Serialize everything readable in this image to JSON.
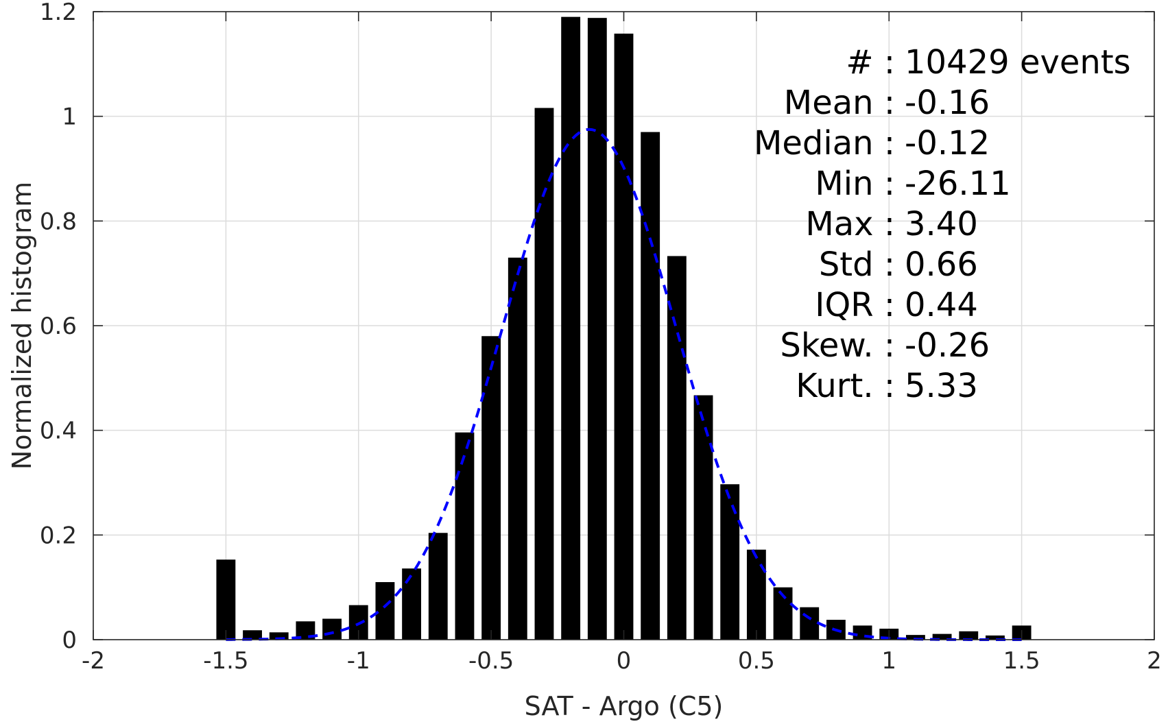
{
  "chart_data": {
    "type": "bar",
    "title": "",
    "xlabel": "SAT - Argo (C5)",
    "ylabel": "Normalized histogram",
    "xlim": [
      -2,
      2
    ],
    "ylim": [
      0,
      1.2
    ],
    "grid": true,
    "xticks": [
      -2,
      -1.5,
      -1,
      -0.5,
      0,
      0.5,
      1,
      1.5,
      2
    ],
    "xtick_labels": [
      "-2",
      "-1.5",
      "-1",
      "-0.5",
      "0",
      "0.5",
      "1",
      "1.5",
      "2"
    ],
    "yticks": [
      0,
      0.2,
      0.4,
      0.6,
      0.8,
      1,
      1.2
    ],
    "ytick_labels": [
      "0",
      "0.2",
      "0.4",
      "0.6",
      "0.8",
      "1",
      "1.2"
    ],
    "bin_width": 0.1,
    "x": [
      -1.5,
      -1.4,
      -1.3,
      -1.2,
      -1.1,
      -1.0,
      -0.9,
      -0.8,
      -0.7,
      -0.6,
      -0.5,
      -0.4,
      -0.3,
      -0.2,
      -0.1,
      0.0,
      0.1,
      0.2,
      0.3,
      0.4,
      0.5,
      0.6,
      0.7,
      0.8,
      0.9,
      1.0,
      1.1,
      1.2,
      1.3,
      1.4,
      1.5
    ],
    "values": [
      0.153,
      0.018,
      0.014,
      0.035,
      0.04,
      0.066,
      0.11,
      0.136,
      0.204,
      0.396,
      0.58,
      0.73,
      1.016,
      1.19,
      1.188,
      1.158,
      0.97,
      0.733,
      0.467,
      0.297,
      0.172,
      0.1,
      0.062,
      0.038,
      0.027,
      0.021,
      0.009,
      0.011,
      0.016,
      0.008,
      0.027
    ],
    "fit_curve": {
      "type": "normal",
      "mean": -0.13,
      "std": 0.33,
      "peak": 0.975,
      "x_range": [
        -1.5,
        1.5
      ],
      "color": "#0000ff",
      "style": "dashed"
    },
    "annotations": [
      {
        "label": "#  :",
        "value": "10429 events"
      },
      {
        "label": "Mean :",
        "value": "-0.16"
      },
      {
        "label": "Median :",
        "value": "-0.12"
      },
      {
        "label": "Min :",
        "value": "-26.11"
      },
      {
        "label": "Max :",
        "value": "3.40"
      },
      {
        "label": "Std :",
        "value": "0.66"
      },
      {
        "label": "IQR :",
        "value": "0.44"
      },
      {
        "label": "Skew. :",
        "value": "-0.26"
      },
      {
        "label": "Kurt. :",
        "value": "5.33"
      }
    ],
    "colors": {
      "bars": "#000000",
      "fit": "#0000ff",
      "grid": "#dcdcdc",
      "axis": "#262626"
    }
  }
}
